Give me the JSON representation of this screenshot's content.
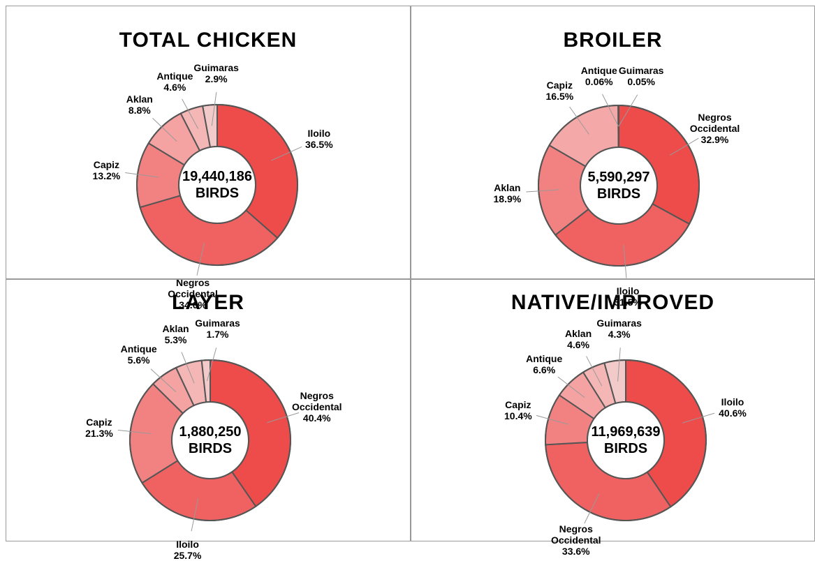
{
  "chart_data": [
    {
      "type": "pie",
      "title": "TOTAL CHICKEN",
      "center_text": [
        "19,440,186",
        "BIRDS"
      ],
      "categories": [
        "Iloilo",
        "Negros Occidental",
        "Capiz",
        "Aklan",
        "Antique",
        "Guimaras"
      ],
      "values": [
        36.5,
        34.0,
        13.2,
        8.8,
        4.6,
        2.9
      ],
      "value_labels": [
        "36.5%",
        "34.0%",
        "13.2%",
        "8.8%",
        "4.6%",
        "2.9%"
      ],
      "colors": [
        "#ee4b4b",
        "#f06262",
        "#f28282",
        "#f5a2a2",
        "#f5b6b6",
        "#f2caca"
      ]
    },
    {
      "type": "pie",
      "title": "BROILER",
      "center_text": [
        "5,590,297",
        "BIRDS"
      ],
      "categories": [
        "Negros Occidental",
        "Iloilo",
        "Aklan",
        "Capiz",
        "Antique",
        "Guimaras"
      ],
      "values": [
        32.9,
        31.5,
        18.9,
        16.5,
        0.06,
        0.05
      ],
      "value_labels": [
        "32.9%",
        "31.5%",
        "18.9%",
        "16.5%",
        "0.06%",
        "0.05%"
      ],
      "colors": [
        "#ee4b4b",
        "#f06262",
        "#f28282",
        "#f5a8a8",
        "#f5b6b6",
        "#f2caca"
      ]
    },
    {
      "type": "pie",
      "title": "LAYER",
      "center_text": [
        "1,880,250",
        "BIRDS"
      ],
      "categories": [
        "Negros Occidental",
        "Iloilo",
        "Capiz",
        "Antique",
        "Aklan",
        "Guimaras"
      ],
      "values": [
        40.4,
        25.7,
        21.3,
        5.6,
        5.3,
        1.7
      ],
      "value_labels": [
        "40.4%",
        "25.7%",
        "21.3%",
        "5.6%",
        "5.3%",
        "1.7%"
      ],
      "colors": [
        "#ee4b4b",
        "#f06262",
        "#f28282",
        "#f5a2a2",
        "#f5b6b6",
        "#f2caca"
      ]
    },
    {
      "type": "pie",
      "title": "NATIVE/IMPROVED",
      "center_text": [
        "11,969,639",
        "BIRDS"
      ],
      "categories": [
        "Iloilo",
        "Negros Occidental",
        "Capiz",
        "Antique",
        "Aklan",
        "Guimaras"
      ],
      "values": [
        40.6,
        33.6,
        10.4,
        6.6,
        4.6,
        4.3
      ],
      "value_labels": [
        "40.6%",
        "33.6%",
        "10.4%",
        "6.6%",
        "4.6%",
        "4.3%"
      ],
      "colors": [
        "#ee4b4b",
        "#f06262",
        "#f28282",
        "#f5a2a2",
        "#f5b6b6",
        "#f2caca"
      ]
    }
  ]
}
